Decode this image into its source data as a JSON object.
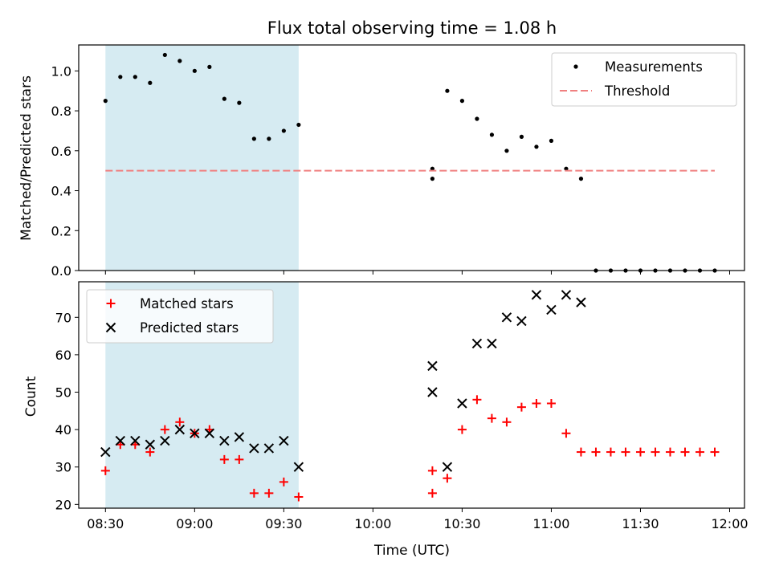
{
  "chart_data": [
    {
      "type": "scatter",
      "title": "Flux total observing time = 1.08 h",
      "xlabel": "",
      "ylabel": "Matched/Predicted stars",
      "ylim": [
        0,
        1.13
      ],
      "yticks": [
        0.0,
        0.2,
        0.4,
        0.6,
        0.8,
        1.0
      ],
      "ytick_labels": [
        "0.0",
        "0.2",
        "0.4",
        "0.6",
        "0.8",
        "1.0"
      ],
      "xlim": [
        "08:21",
        "12:05"
      ],
      "xticks": [
        "08:30",
        "09:00",
        "09:30",
        "10:00",
        "10:30",
        "11:00",
        "11:30",
        "12:00"
      ],
      "tick_labels_shown": false,
      "shaded_interval": {
        "x": [
          "08:30",
          "09:35"
        ],
        "color": "#add8e6"
      },
      "legend": {
        "placement": "top-right",
        "entries": [
          "Measurements",
          "Threshold"
        ]
      },
      "series": [
        {
          "name": "Measurements",
          "marker": "dot",
          "color": "#000000",
          "x": [
            "08:30",
            "08:35",
            "08:40",
            "08:45",
            "08:50",
            "08:55",
            "09:00",
            "09:05",
            "09:10",
            "09:15",
            "09:20",
            "09:25",
            "09:30",
            "09:35",
            "10:20",
            "10:20",
            "10:25",
            "10:30",
            "10:35",
            "10:40",
            "10:45",
            "10:50",
            "10:55",
            "11:00",
            "11:05",
            "11:10",
            "11:15",
            "11:20",
            "11:25",
            "11:30",
            "11:35",
            "11:40",
            "11:45",
            "11:50",
            "11:55"
          ],
          "y": [
            0.85,
            0.97,
            0.97,
            0.94,
            1.08,
            1.05,
            1.0,
            1.02,
            0.86,
            0.84,
            0.66,
            0.66,
            0.7,
            0.73,
            0.46,
            0.51,
            0.9,
            0.85,
            0.76,
            0.68,
            0.6,
            0.67,
            0.62,
            0.65,
            0.51,
            0.46,
            0.0,
            0.0,
            0.0,
            0.0,
            0.0,
            0.0,
            0.0,
            0.0,
            0.0
          ]
        },
        {
          "name": "Threshold",
          "style": "dashed",
          "color": "#f08080",
          "x": [
            "08:30",
            "11:55"
          ],
          "y": [
            0.5,
            0.5
          ]
        }
      ]
    },
    {
      "type": "scatter",
      "title": "",
      "xlabel": "Time (UTC)",
      "ylabel": "Count",
      "ylim": [
        19,
        79.5
      ],
      "yticks": [
        20,
        30,
        40,
        50,
        60,
        70
      ],
      "ytick_labels": [
        "20",
        "30",
        "40",
        "50",
        "60",
        "70"
      ],
      "xlim": [
        "08:21",
        "12:05"
      ],
      "xticks": [
        "08:30",
        "09:00",
        "09:30",
        "10:00",
        "10:30",
        "11:00",
        "11:30",
        "12:00"
      ],
      "xtick_labels": [
        "08:30",
        "09:00",
        "09:30",
        "10:00",
        "10:30",
        "11:00",
        "11:30",
        "12:00"
      ],
      "shaded_interval": {
        "x": [
          "08:30",
          "09:35"
        ],
        "color": "#add8e6"
      },
      "legend": {
        "placement": "top-left",
        "entries": [
          "Matched stars",
          "Predicted stars"
        ]
      },
      "series": [
        {
          "name": "Matched stars",
          "marker": "plus",
          "color": "#ff0000",
          "x": [
            "08:30",
            "08:35",
            "08:40",
            "08:45",
            "08:50",
            "08:55",
            "09:00",
            "09:05",
            "09:10",
            "09:15",
            "09:20",
            "09:25",
            "09:30",
            "09:35",
            "10:20",
            "10:20",
            "10:25",
            "10:30",
            "10:35",
            "10:40",
            "10:45",
            "10:50",
            "10:55",
            "11:00",
            "11:05",
            "11:10",
            "11:15",
            "11:20",
            "11:25",
            "11:30",
            "11:35",
            "11:40",
            "11:45",
            "11:50",
            "11:55"
          ],
          "y": [
            29,
            36,
            36,
            34,
            40,
            42,
            39,
            40,
            32,
            32,
            23,
            23,
            26,
            22,
            23,
            29,
            27,
            40,
            48,
            43,
            42,
            46,
            47,
            47,
            39,
            34,
            34,
            34,
            34,
            34,
            34,
            34,
            34,
            34,
            34
          ]
        },
        {
          "name": "Predicted stars",
          "marker": "x",
          "color": "#000000",
          "x": [
            "08:30",
            "08:35",
            "08:40",
            "08:45",
            "08:50",
            "08:55",
            "09:00",
            "09:05",
            "09:10",
            "09:15",
            "09:20",
            "09:25",
            "09:30",
            "09:35",
            "10:20",
            "10:20",
            "10:25",
            "10:30",
            "10:35",
            "10:40",
            "10:45",
            "10:50",
            "10:55",
            "11:00",
            "11:05",
            "11:10"
          ],
          "y": [
            34,
            37,
            37,
            36,
            37,
            40,
            39,
            39,
            37,
            38,
            35,
            35,
            37,
            30,
            50,
            57,
            30,
            47,
            63,
            63,
            70,
            69,
            76,
            72,
            76,
            74
          ]
        }
      ]
    }
  ]
}
